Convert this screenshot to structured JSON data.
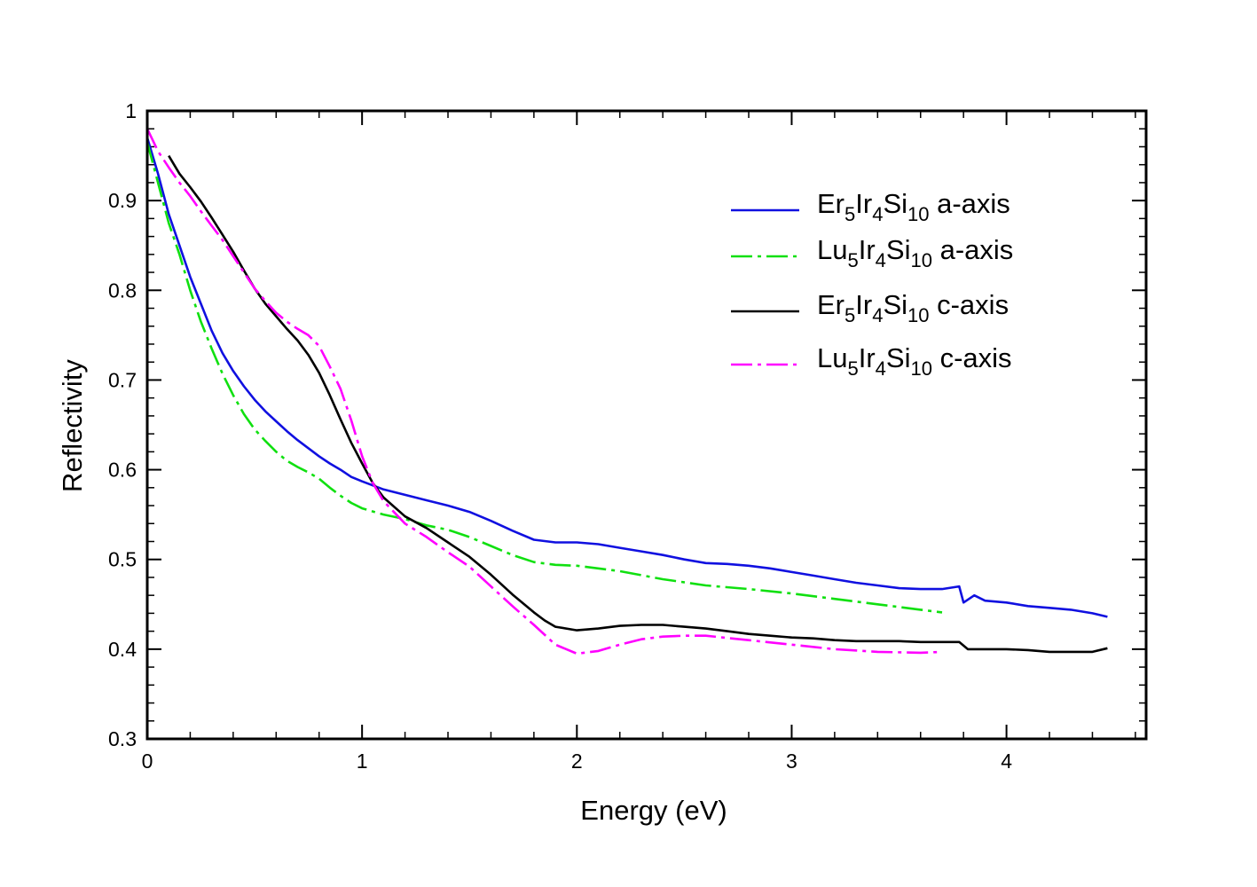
{
  "chart_data": {
    "type": "line",
    "title": "",
    "xlabel": "Energy (eV)",
    "ylabel": "Reflectivity",
    "xlim": [
      0,
      4.65
    ],
    "ylim": [
      0.3,
      1.0
    ],
    "xticks": [
      0,
      1,
      2,
      3,
      4
    ],
    "xtick_labels": [
      "0",
      "1",
      "2",
      "3",
      "4"
    ],
    "yticks": [
      0.3,
      0.4,
      0.5,
      0.6,
      0.7,
      0.8,
      0.9,
      1.0
    ],
    "ytick_labels": [
      "0.3",
      "0.4",
      "0.5",
      "0.6",
      "0.7",
      "0.8",
      "0.9",
      "1"
    ],
    "grid": false,
    "legend_position": "top-right",
    "series": [
      {
        "name": "Er5Ir4Si10 a-axis",
        "legend": {
          "base1": "Er",
          "sub1": "5",
          "base2": "Ir",
          "sub2": "4",
          "base3": "Si",
          "sub3": "10",
          "suffix": " a-axis"
        },
        "color": "#1010e0",
        "dash": "solid",
        "x": [
          0.0,
          0.05,
          0.1,
          0.15,
          0.2,
          0.25,
          0.3,
          0.35,
          0.4,
          0.45,
          0.5,
          0.55,
          0.6,
          0.65,
          0.7,
          0.75,
          0.8,
          0.85,
          0.9,
          0.95,
          1.0,
          1.1,
          1.2,
          1.3,
          1.4,
          1.5,
          1.6,
          1.7,
          1.8,
          1.9,
          2.0,
          2.1,
          2.2,
          2.3,
          2.4,
          2.5,
          2.6,
          2.7,
          2.8,
          2.9,
          3.0,
          3.1,
          3.2,
          3.3,
          3.4,
          3.5,
          3.6,
          3.7,
          3.78,
          3.8,
          3.85,
          3.9,
          4.0,
          4.1,
          4.2,
          4.3,
          4.4,
          4.47
        ],
        "y": [
          0.97,
          0.93,
          0.885,
          0.85,
          0.815,
          0.785,
          0.755,
          0.73,
          0.71,
          0.693,
          0.678,
          0.665,
          0.654,
          0.643,
          0.633,
          0.624,
          0.615,
          0.607,
          0.6,
          0.592,
          0.587,
          0.578,
          0.572,
          0.566,
          0.56,
          0.553,
          0.543,
          0.532,
          0.522,
          0.519,
          0.519,
          0.517,
          0.513,
          0.509,
          0.505,
          0.5,
          0.496,
          0.495,
          0.493,
          0.49,
          0.486,
          0.482,
          0.478,
          0.474,
          0.471,
          0.468,
          0.467,
          0.467,
          0.47,
          0.452,
          0.46,
          0.454,
          0.452,
          0.448,
          0.446,
          0.444,
          0.44,
          0.436
        ]
      },
      {
        "name": "Lu5Ir4Si10 a-axis",
        "legend": {
          "base1": "Lu",
          "sub1": "5",
          "base2": "Ir",
          "sub2": "4",
          "base3": "Si",
          "sub3": "10",
          "suffix": " a-axis"
        },
        "color": "#10e010",
        "dash": "dashdot",
        "x": [
          0.0,
          0.05,
          0.1,
          0.15,
          0.2,
          0.25,
          0.3,
          0.35,
          0.4,
          0.45,
          0.5,
          0.55,
          0.6,
          0.65,
          0.7,
          0.75,
          0.8,
          0.85,
          0.9,
          0.95,
          1.0,
          1.1,
          1.2,
          1.3,
          1.4,
          1.5,
          1.6,
          1.7,
          1.8,
          1.9,
          2.0,
          2.2,
          2.4,
          2.6,
          2.8,
          3.0,
          3.2,
          3.4,
          3.6,
          3.7
        ],
        "y": [
          0.965,
          0.92,
          0.875,
          0.84,
          0.8,
          0.765,
          0.735,
          0.707,
          0.683,
          0.662,
          0.645,
          0.632,
          0.62,
          0.61,
          0.603,
          0.597,
          0.59,
          0.58,
          0.571,
          0.563,
          0.557,
          0.55,
          0.545,
          0.538,
          0.533,
          0.525,
          0.515,
          0.505,
          0.497,
          0.494,
          0.493,
          0.487,
          0.478,
          0.471,
          0.467,
          0.462,
          0.456,
          0.45,
          0.444,
          0.441
        ]
      },
      {
        "name": "Er5Ir4Si10 c-axis",
        "legend": {
          "base1": "Er",
          "sub1": "5",
          "base2": "Ir",
          "sub2": "4",
          "base3": "Si",
          "sub3": "10",
          "suffix": " c-axis"
        },
        "color": "#000000",
        "dash": "solid",
        "x": [
          0.1,
          0.15,
          0.2,
          0.25,
          0.3,
          0.35,
          0.4,
          0.45,
          0.5,
          0.55,
          0.6,
          0.65,
          0.7,
          0.75,
          0.8,
          0.85,
          0.9,
          0.95,
          1.0,
          1.05,
          1.1,
          1.2,
          1.3,
          1.4,
          1.5,
          1.6,
          1.7,
          1.8,
          1.85,
          1.9,
          2.0,
          2.1,
          2.2,
          2.3,
          2.4,
          2.5,
          2.6,
          2.7,
          2.8,
          2.9,
          3.0,
          3.1,
          3.2,
          3.3,
          3.4,
          3.5,
          3.6,
          3.7,
          3.78,
          3.82,
          3.9,
          4.0,
          4.1,
          4.2,
          4.3,
          4.4,
          4.47
        ],
        "y": [
          0.95,
          0.93,
          0.915,
          0.899,
          0.881,
          0.862,
          0.843,
          0.822,
          0.802,
          0.785,
          0.771,
          0.757,
          0.744,
          0.728,
          0.708,
          0.683,
          0.656,
          0.63,
          0.607,
          0.585,
          0.569,
          0.548,
          0.535,
          0.519,
          0.503,
          0.483,
          0.461,
          0.441,
          0.432,
          0.425,
          0.421,
          0.423,
          0.426,
          0.427,
          0.427,
          0.425,
          0.423,
          0.42,
          0.417,
          0.415,
          0.413,
          0.412,
          0.41,
          0.409,
          0.409,
          0.409,
          0.408,
          0.408,
          0.408,
          0.4,
          0.4,
          0.4,
          0.399,
          0.397,
          0.397,
          0.397,
          0.401
        ]
      },
      {
        "name": "Lu5Ir4Si10 c-axis",
        "legend": {
          "base1": "Lu",
          "sub1": "5",
          "base2": "Ir",
          "sub2": "4",
          "base3": "Si",
          "sub3": "10",
          "suffix": " c-axis"
        },
        "color": "#ff00ff",
        "dash": "dashdot",
        "x": [
          0.0,
          0.05,
          0.1,
          0.15,
          0.2,
          0.25,
          0.3,
          0.35,
          0.4,
          0.45,
          0.5,
          0.55,
          0.6,
          0.65,
          0.7,
          0.75,
          0.8,
          0.85,
          0.9,
          0.95,
          1.0,
          1.05,
          1.1,
          1.2,
          1.3,
          1.4,
          1.5,
          1.6,
          1.7,
          1.8,
          1.9,
          2.0,
          2.1,
          2.2,
          2.3,
          2.4,
          2.5,
          2.6,
          2.8,
          3.0,
          3.2,
          3.4,
          3.6,
          3.7
        ],
        "y": [
          0.98,
          0.955,
          0.937,
          0.92,
          0.905,
          0.888,
          0.872,
          0.856,
          0.838,
          0.82,
          0.802,
          0.788,
          0.775,
          0.765,
          0.757,
          0.75,
          0.738,
          0.715,
          0.69,
          0.655,
          0.615,
          0.585,
          0.565,
          0.54,
          0.525,
          0.508,
          0.492,
          0.47,
          0.448,
          0.427,
          0.405,
          0.395,
          0.398,
          0.405,
          0.411,
          0.414,
          0.415,
          0.415,
          0.41,
          0.405,
          0.4,
          0.397,
          0.396,
          0.397
        ]
      }
    ]
  }
}
